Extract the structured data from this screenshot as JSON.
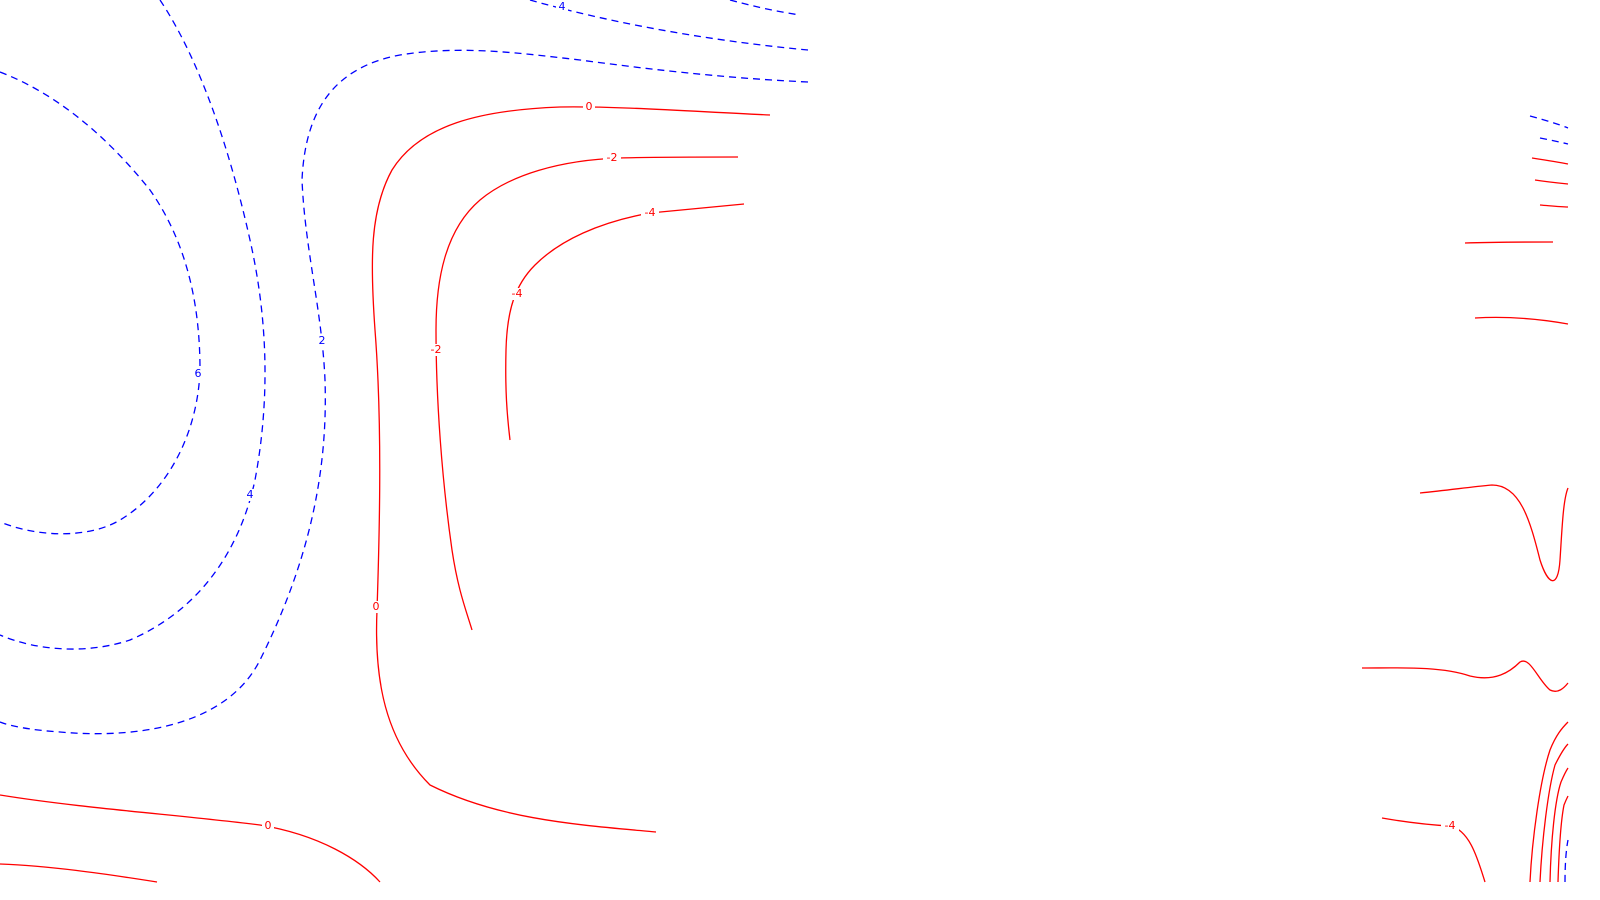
{
  "chart_data": {
    "type": "contour",
    "title": "",
    "xlabel": "",
    "ylabel": "",
    "grid": false,
    "legend": "none",
    "colors": {
      "positive": "#ff0000",
      "negative": "#0000ff",
      "background": "#ffffff"
    },
    "line_styles": {
      "positive": "solid",
      "negative": "dashed"
    },
    "levels": [
      {
        "value": 0,
        "label": "0",
        "sign": "positive"
      },
      {
        "value": -2,
        "label": "-2",
        "sign": "positive"
      },
      {
        "value": -4,
        "label": "-4",
        "sign": "positive"
      },
      {
        "value": 2,
        "label": "2",
        "sign": "negative"
      },
      {
        "value": 4,
        "label": "4",
        "sign": "negative"
      },
      {
        "value": 6,
        "label": "6",
        "sign": "negative"
      }
    ]
  }
}
